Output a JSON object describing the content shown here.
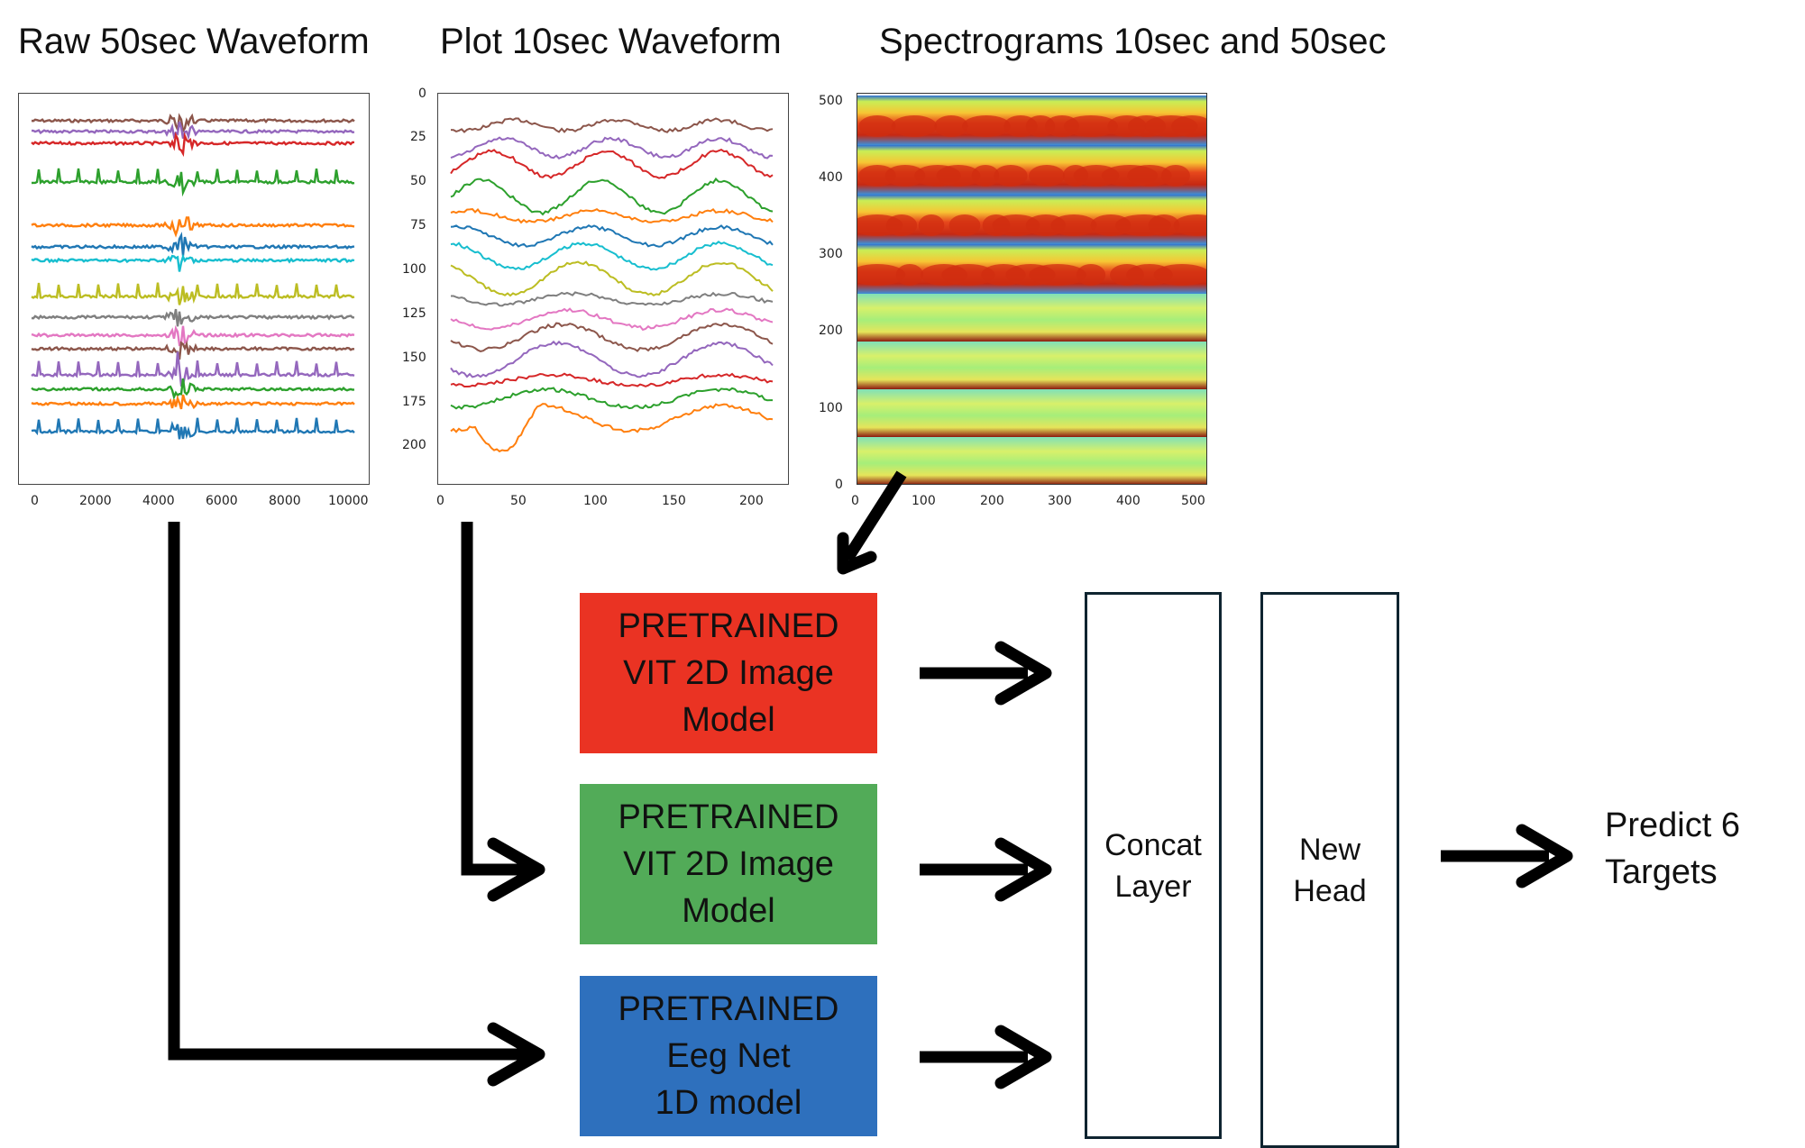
{
  "titles": {
    "raw": "Raw 50sec Waveform",
    "plot": "Plot 10sec Waveform",
    "spec": "Spectrograms 10sec and 50sec"
  },
  "raw_panel": {
    "x_ticks": [
      "0",
      "2000",
      "4000",
      "6000",
      "8000",
      "10000"
    ]
  },
  "plot_panel": {
    "x_ticks": [
      "0",
      "50",
      "100",
      "150",
      "200"
    ],
    "y_ticks": [
      "0",
      "25",
      "50",
      "75",
      "100",
      "125",
      "150",
      "175",
      "200"
    ]
  },
  "spec_panel": {
    "x_ticks": [
      "0",
      "100",
      "200",
      "300",
      "400",
      "500"
    ],
    "y_ticks": [
      "500",
      "400",
      "300",
      "200",
      "100",
      "0"
    ]
  },
  "models": [
    {
      "line1": "PRETRAINED",
      "line2": "VIT 2D Image",
      "line3": "Model",
      "color": "#ea3323"
    },
    {
      "line1": "PRETRAINED",
      "line2": "VIT 2D Image",
      "line3": "Model",
      "color": "#52ab58"
    },
    {
      "line1": "PRETRAINED",
      "line2": "Eeg Net",
      "line3": "1D model",
      "color": "#2e70bd"
    }
  ],
  "concat": {
    "line1": "Concat",
    "line2": "Layer"
  },
  "head": {
    "line1": "New",
    "line2": "Head"
  },
  "output": {
    "line1": "Predict 6",
    "line2": "Targets"
  },
  "series_colors": [
    "#8c564b",
    "#9467bd",
    "#d62728",
    "#2ca02c",
    "#ff7f0e",
    "#1f77b4",
    "#17becf",
    "#bcbd22",
    "#7f7f7f",
    "#e377c2"
  ]
}
